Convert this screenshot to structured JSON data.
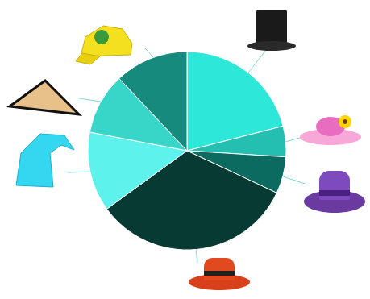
{
  "chart_data": {
    "type": "pie",
    "values": [
      21,
      5,
      6,
      33,
      13,
      10,
      12
    ],
    "colors": [
      "#2de8d8",
      "#24bfb0",
      "#0b6b60",
      "#063a33",
      "#5ef2ec",
      "#38d6c8",
      "#178a7e"
    ],
    "data_labels": false
  }
}
